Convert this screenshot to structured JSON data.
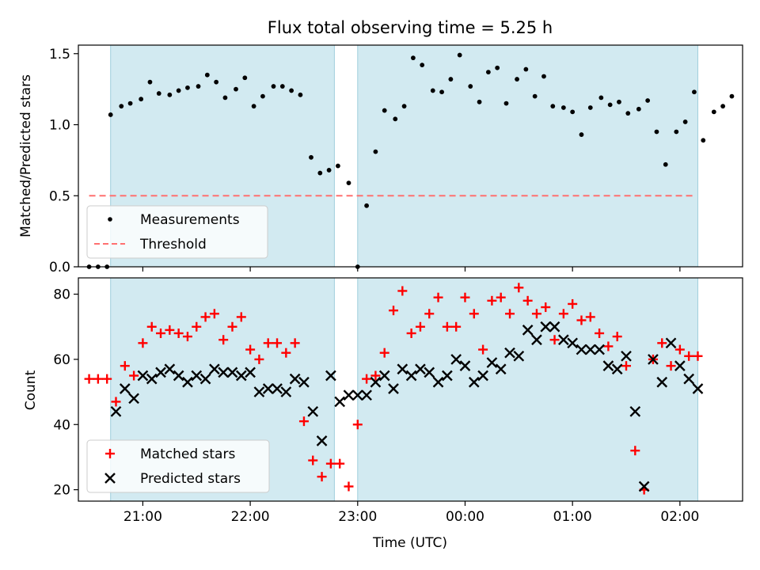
{
  "figure": {
    "title": "Flux total observing time = 5.25 h",
    "xlabel": "Time (UTC)"
  },
  "chart_data": [
    {
      "type": "scatter",
      "panel": "top",
      "ylabel": "Matched/Predicted stars",
      "xlim": [
        "20:24",
        "02:35"
      ],
      "ylim": [
        0,
        1.56
      ],
      "y_ticks": [
        "0.0",
        "0.5",
        "1.0",
        "1.5"
      ],
      "threshold": {
        "name": "Threshold",
        "value": 0.5,
        "x": [
          "20:30",
          "02:07"
        ],
        "color": "#ff7070",
        "style": "dashed"
      },
      "shaded_regions": [
        {
          "x": [
            "20:42",
            "22:47"
          ],
          "color": "#add8e6"
        },
        {
          "x": [
            "23:00",
            "02:10"
          ],
          "color": "#add8e6"
        }
      ],
      "series": [
        {
          "name": "Measurements",
          "marker": "dot",
          "color": "#000000",
          "points": [
            [
              "20:30",
              0.0
            ],
            [
              "20:35",
              0.0
            ],
            [
              "20:40",
              0.0
            ],
            [
              "20:42",
              1.07
            ],
            [
              "20:48",
              1.13
            ],
            [
              "20:53",
              1.15
            ],
            [
              "20:59",
              1.18
            ],
            [
              "21:04",
              1.3
            ],
            [
              "21:09",
              1.22
            ],
            [
              "21:15",
              1.21
            ],
            [
              "21:20",
              1.24
            ],
            [
              "21:25",
              1.26
            ],
            [
              "21:31",
              1.27
            ],
            [
              "21:36",
              1.35
            ],
            [
              "21:41",
              1.3
            ],
            [
              "21:46",
              1.19
            ],
            [
              "21:52",
              1.25
            ],
            [
              "21:57",
              1.33
            ],
            [
              "22:02",
              1.13
            ],
            [
              "22:07",
              1.2
            ],
            [
              "22:13",
              1.27
            ],
            [
              "22:18",
              1.27
            ],
            [
              "22:23",
              1.24
            ],
            [
              "22:28",
              1.21
            ],
            [
              "22:34",
              0.77
            ],
            [
              "22:39",
              0.66
            ],
            [
              "22:44",
              0.68
            ],
            [
              "22:49",
              0.71
            ],
            [
              "22:55",
              0.59
            ],
            [
              "23:00",
              0.0
            ],
            [
              "23:05",
              0.43
            ],
            [
              "23:10",
              0.81
            ],
            [
              "23:15",
              1.1
            ],
            [
              "23:21",
              1.04
            ],
            [
              "23:26",
              1.13
            ],
            [
              "23:31",
              1.47
            ],
            [
              "23:36",
              1.42
            ],
            [
              "23:42",
              1.24
            ],
            [
              "23:47",
              1.23
            ],
            [
              "23:52",
              1.32
            ],
            [
              "23:57",
              1.49
            ],
            [
              "00:03",
              1.27
            ],
            [
              "00:08",
              1.16
            ],
            [
              "00:13",
              1.37
            ],
            [
              "00:18",
              1.4
            ],
            [
              "00:23",
              1.15
            ],
            [
              "00:29",
              1.32
            ],
            [
              "00:34",
              1.39
            ],
            [
              "00:39",
              1.2
            ],
            [
              "00:44",
              1.34
            ],
            [
              "00:49",
              1.13
            ],
            [
              "00:55",
              1.12
            ],
            [
              "01:00",
              1.09
            ],
            [
              "01:05",
              0.93
            ],
            [
              "01:10",
              1.12
            ],
            [
              "01:16",
              1.19
            ],
            [
              "01:21",
              1.14
            ],
            [
              "01:26",
              1.16
            ],
            [
              "01:31",
              1.08
            ],
            [
              "01:37",
              1.11
            ],
            [
              "01:42",
              1.17
            ],
            [
              "01:47",
              0.95
            ],
            [
              "01:52",
              0.72
            ],
            [
              "01:58",
              0.95
            ],
            [
              "02:03",
              1.02
            ],
            [
              "02:08",
              1.23
            ],
            [
              "02:13",
              0.89
            ],
            [
              "02:19",
              1.09
            ],
            [
              "02:24",
              1.13
            ],
            [
              "02:29",
              1.2
            ]
          ]
        }
      ],
      "legend": {
        "position": "lower-left",
        "entries": [
          "Measurements",
          "Threshold"
        ]
      }
    },
    {
      "type": "scatter",
      "panel": "bottom",
      "ylabel": "Count",
      "xlim": [
        "20:24",
        "02:35"
      ],
      "ylim": [
        16.5,
        85
      ],
      "y_ticks": [
        "20",
        "40",
        "60",
        "80"
      ],
      "x_ticks": [
        "21:00",
        "22:00",
        "23:00",
        "00:00",
        "01:00",
        "02:00"
      ],
      "shaded_regions": [
        {
          "x": [
            "20:42",
            "22:47"
          ],
          "color": "#add8e6"
        },
        {
          "x": [
            "23:00",
            "02:10"
          ],
          "color": "#add8e6"
        }
      ],
      "series": [
        {
          "name": "Matched stars",
          "marker": "plus",
          "color": "#ff0000",
          "points": [
            [
              "20:30",
              54
            ],
            [
              "20:35",
              54
            ],
            [
              "20:40",
              54
            ],
            [
              "20:45",
              47
            ],
            [
              "20:50",
              58
            ],
            [
              "20:55",
              55
            ],
            [
              "21:00",
              65
            ],
            [
              "21:05",
              70
            ],
            [
              "21:10",
              68
            ],
            [
              "21:15",
              69
            ],
            [
              "21:20",
              68
            ],
            [
              "21:25",
              67
            ],
            [
              "21:30",
              70
            ],
            [
              "21:35",
              73
            ],
            [
              "21:40",
              74
            ],
            [
              "21:45",
              66
            ],
            [
              "21:50",
              70
            ],
            [
              "21:55",
              73
            ],
            [
              "22:00",
              63
            ],
            [
              "22:05",
              60
            ],
            [
              "22:10",
              65
            ],
            [
              "22:15",
              65
            ],
            [
              "22:20",
              62
            ],
            [
              "22:25",
              65
            ],
            [
              "22:30",
              41
            ],
            [
              "22:35",
              29
            ],
            [
              "22:40",
              24
            ],
            [
              "22:45",
              28
            ],
            [
              "22:50",
              28
            ],
            [
              "22:55",
              21
            ],
            [
              "23:00",
              40
            ],
            [
              "23:05",
              54
            ],
            [
              "23:10",
              55
            ],
            [
              "23:15",
              62
            ],
            [
              "23:20",
              75
            ],
            [
              "23:25",
              81
            ],
            [
              "23:30",
              68
            ],
            [
              "23:35",
              70
            ],
            [
              "23:40",
              74
            ],
            [
              "23:45",
              79
            ],
            [
              "23:50",
              70
            ],
            [
              "23:55",
              70
            ],
            [
              "00:00",
              79
            ],
            [
              "00:05",
              74
            ],
            [
              "00:10",
              63
            ],
            [
              "00:15",
              78
            ],
            [
              "00:20",
              79
            ],
            [
              "00:25",
              74
            ],
            [
              "00:30",
              82
            ],
            [
              "00:35",
              78
            ],
            [
              "00:40",
              74
            ],
            [
              "00:45",
              76
            ],
            [
              "00:50",
              66
            ],
            [
              "00:55",
              74
            ],
            [
              "01:00",
              77
            ],
            [
              "01:05",
              72
            ],
            [
              "01:10",
              73
            ],
            [
              "01:15",
              68
            ],
            [
              "01:20",
              64
            ],
            [
              "01:25",
              67
            ],
            [
              "01:30",
              58
            ],
            [
              "01:35",
              32
            ],
            [
              "01:40",
              20
            ],
            [
              "01:45",
              60
            ],
            [
              "01:50",
              65
            ],
            [
              "01:55",
              58
            ],
            [
              "02:00",
              63
            ],
            [
              "02:05",
              61
            ],
            [
              "02:10",
              61
            ]
          ]
        },
        {
          "name": "Predicted stars",
          "marker": "x",
          "color": "#000000",
          "points": [
            [
              "20:45",
              44
            ],
            [
              "20:50",
              51
            ],
            [
              "20:55",
              48
            ],
            [
              "21:00",
              55
            ],
            [
              "21:05",
              54
            ],
            [
              "21:10",
              56
            ],
            [
              "21:15",
              57
            ],
            [
              "21:20",
              55
            ],
            [
              "21:25",
              53
            ],
            [
              "21:30",
              55
            ],
            [
              "21:35",
              54
            ],
            [
              "21:40",
              57
            ],
            [
              "21:45",
              56
            ],
            [
              "21:50",
              56
            ],
            [
              "21:55",
              55
            ],
            [
              "22:00",
              56
            ],
            [
              "22:05",
              50
            ],
            [
              "22:10",
              51
            ],
            [
              "22:15",
              51
            ],
            [
              "22:20",
              50
            ],
            [
              "22:25",
              54
            ],
            [
              "22:30",
              53
            ],
            [
              "22:35",
              44
            ],
            [
              "22:40",
              35
            ],
            [
              "22:45",
              55
            ],
            [
              "22:50",
              47
            ],
            [
              "22:55",
              49
            ],
            [
              "23:00",
              49
            ],
            [
              "23:05",
              49
            ],
            [
              "23:10",
              53
            ],
            [
              "23:15",
              55
            ],
            [
              "23:20",
              51
            ],
            [
              "23:25",
              57
            ],
            [
              "23:30",
              55
            ],
            [
              "23:35",
              57
            ],
            [
              "23:40",
              56
            ],
            [
              "23:45",
              53
            ],
            [
              "23:50",
              55
            ],
            [
              "23:55",
              60
            ],
            [
              "00:00",
              58
            ],
            [
              "00:05",
              53
            ],
            [
              "00:10",
              55
            ],
            [
              "00:15",
              59
            ],
            [
              "00:20",
              57
            ],
            [
              "00:25",
              62
            ],
            [
              "00:30",
              61
            ],
            [
              "00:35",
              69
            ],
            [
              "00:40",
              66
            ],
            [
              "00:45",
              70
            ],
            [
              "00:50",
              70
            ],
            [
              "00:55",
              66
            ],
            [
              "01:00",
              65
            ],
            [
              "01:05",
              63
            ],
            [
              "01:10",
              63
            ],
            [
              "01:15",
              63
            ],
            [
              "01:20",
              58
            ],
            [
              "01:25",
              57
            ],
            [
              "01:30",
              61
            ],
            [
              "01:35",
              44
            ],
            [
              "01:40",
              21
            ],
            [
              "01:45",
              60
            ],
            [
              "01:50",
              53
            ],
            [
              "01:55",
              65
            ],
            [
              "02:00",
              58
            ],
            [
              "02:05",
              54
            ],
            [
              "02:10",
              51
            ]
          ]
        }
      ],
      "legend": {
        "position": "lower-left",
        "entries": [
          "Matched stars",
          "Predicted stars"
        ]
      }
    }
  ]
}
